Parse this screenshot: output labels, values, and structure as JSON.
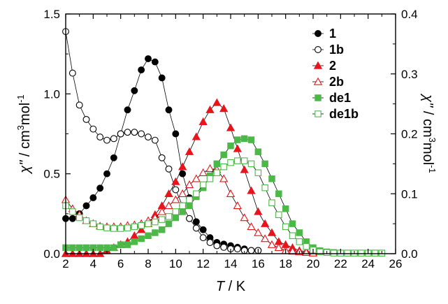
{
  "chart_data": {
    "type": "scatter",
    "xlabel": {
      "var": "T",
      "unit": " / K"
    },
    "ylabel_left": {
      "var": "χ\"",
      "unit": " / cm",
      "sup": "3",
      "tail": "mol",
      "sup2": "-1"
    },
    "ylabel_right": {
      "var": "χ\"",
      "unit": " / cm",
      "sup": "3",
      "tail": "mol",
      "sup2": "-1"
    },
    "xlim": [
      2,
      26
    ],
    "ylim_left": [
      0,
      1.5
    ],
    "ylim_right": [
      0,
      0.4
    ],
    "x_ticks": [
      "2",
      "4",
      "6",
      "8",
      "10",
      "12",
      "14",
      "16",
      "18",
      "20",
      "22",
      "24",
      "26"
    ],
    "y_ticks_left": [
      "0.0",
      "0.5",
      "1.0",
      "1.5"
    ],
    "y_ticks_right": [
      "0.0",
      "0.1",
      "0.2",
      "0.3",
      "0.4"
    ],
    "legend_position": "top-right",
    "series": [
      {
        "name": "1",
        "axis": "left",
        "marker": "circle",
        "filled": true,
        "color": "#000000",
        "x": [
          2,
          2.5,
          3,
          3.5,
          4,
          4.5,
          5,
          5.5,
          6,
          6.5,
          7,
          7.5,
          8,
          8.5,
          9,
          9.5,
          10,
          10.5,
          11,
          11.5,
          12,
          12.5,
          13,
          13.5,
          14,
          14.5,
          15,
          15.5,
          16
        ],
        "y": [
          0.22,
          0.22,
          0.25,
          0.3,
          0.35,
          0.41,
          0.5,
          0.6,
          0.75,
          0.9,
          1.02,
          1.15,
          1.22,
          1.2,
          1.1,
          0.9,
          0.75,
          0.5,
          0.35,
          0.2,
          0.15,
          0.1,
          0.07,
          0.06,
          0.05,
          0.04,
          0.03,
          0.02,
          0.02
        ]
      },
      {
        "name": "1b",
        "axis": "left",
        "marker": "circle",
        "filled": false,
        "color": "#000000",
        "x": [
          2,
          2.5,
          3,
          3.5,
          4,
          4.5,
          5,
          5.5,
          6,
          6.5,
          7,
          7.5,
          8,
          8.5,
          9,
          9.5,
          10,
          10.5,
          11,
          11.5,
          12,
          12.5,
          13,
          13.5,
          14,
          14.5,
          15,
          15.5,
          16
        ],
        "y": [
          1.39,
          1.13,
          0.93,
          0.84,
          0.78,
          0.73,
          0.71,
          0.72,
          0.75,
          0.76,
          0.76,
          0.75,
          0.73,
          0.71,
          0.6,
          0.53,
          0.4,
          0.3,
          0.22,
          0.16,
          0.1,
          0.07,
          0.05,
          0.04,
          0.03,
          0.03,
          0.02,
          0.02,
          0.02
        ]
      },
      {
        "name": "2",
        "axis": "right",
        "marker": "triangle",
        "filled": true,
        "color": "#e8141c",
        "x": [
          2,
          2.5,
          3,
          3.5,
          4,
          4.5,
          5,
          5.5,
          6,
          6.5,
          7,
          7.5,
          8,
          8.5,
          9,
          9.5,
          10,
          10.5,
          11,
          11.5,
          12,
          12.5,
          13,
          13.5,
          14,
          14.5,
          15,
          15.5,
          16,
          16.5,
          17,
          17.5,
          18,
          18.5,
          19,
          19.5,
          20
        ],
        "y": [
          0,
          0,
          0,
          0,
          0,
          0,
          0.005,
          0.01,
          0.015,
          0.02,
          0.03,
          0.04,
          0.05,
          0.065,
          0.08,
          0.1,
          0.12,
          0.145,
          0.17,
          0.195,
          0.22,
          0.24,
          0.252,
          0.242,
          0.21,
          0.175,
          0.14,
          0.105,
          0.07,
          0.05,
          0.035,
          0.02,
          0.015,
          0.01,
          0.005,
          0.004,
          0.003
        ]
      },
      {
        "name": "2b",
        "axis": "right",
        "marker": "triangle",
        "filled": false,
        "color": "#e8141c",
        "x": [
          2,
          2.5,
          3,
          3.5,
          4,
          4.5,
          5,
          5.5,
          6,
          6.5,
          7,
          7.5,
          8,
          8.5,
          9,
          9.5,
          10,
          10.5,
          11,
          11.5,
          12,
          12.5,
          13,
          13.5,
          14,
          14.5,
          15,
          15.5,
          16,
          16.5,
          17,
          17.5,
          18,
          18.5,
          19,
          19.5,
          20
        ],
        "y": [
          0.09,
          0.075,
          0.065,
          0.055,
          0.05,
          0.046,
          0.045,
          0.045,
          0.045,
          0.047,
          0.048,
          0.05,
          0.055,
          0.06,
          0.07,
          0.08,
          0.09,
          0.1,
          0.115,
          0.125,
          0.135,
          0.142,
          0.14,
          0.125,
          0.1,
          0.08,
          0.06,
          0.045,
          0.035,
          0.025,
          0.015,
          0.01,
          0.005,
          0.004,
          0.003,
          0.002,
          0.001
        ]
      },
      {
        "name": "de1",
        "axis": "right",
        "marker": "square",
        "filled": true,
        "color": "#4cb848",
        "x": [
          2,
          2.5,
          3,
          3.5,
          4,
          4.5,
          5,
          5.5,
          6,
          6.5,
          7,
          7.5,
          8,
          8.5,
          9,
          9.5,
          10,
          10.5,
          11,
          11.5,
          12,
          12.5,
          13,
          13.5,
          14,
          14.5,
          15,
          15.5,
          16,
          16.5,
          17,
          17.5,
          18,
          18.5,
          19,
          19.5,
          20,
          20.5,
          21,
          21.5,
          22,
          22.5,
          23,
          23.5,
          24,
          24.5,
          25
        ],
        "y": [
          0.01,
          0.01,
          0.01,
          0.01,
          0.01,
          0.01,
          0.01,
          0.01,
          0.015,
          0.015,
          0.02,
          0.025,
          0.03,
          0.035,
          0.04,
          0.05,
          0.06,
          0.07,
          0.08,
          0.095,
          0.11,
          0.13,
          0.15,
          0.165,
          0.18,
          0.19,
          0.192,
          0.19,
          0.17,
          0.15,
          0.125,
          0.1,
          0.075,
          0.05,
          0.035,
          0.02,
          0.01,
          0.005,
          0.003,
          0.002,
          0.001,
          0.001,
          0.001,
          0.001,
          0.001,
          0.001,
          0.001
        ]
      },
      {
        "name": "de1b",
        "axis": "right",
        "marker": "square",
        "filled": false,
        "color": "#4cb848",
        "x": [
          2,
          2.5,
          3,
          3.5,
          4,
          4.5,
          5,
          5.5,
          6,
          6.5,
          7,
          7.5,
          8,
          8.5,
          9,
          9.5,
          10,
          10.5,
          11,
          11.5,
          12,
          12.5,
          13,
          13.5,
          14,
          14.5,
          15,
          15.5,
          16,
          16.5,
          17,
          17.5,
          18,
          18.5,
          19,
          19.5,
          20,
          20.5,
          21,
          21.5,
          22,
          22.5,
          23,
          23.5,
          24,
          24.5,
          25
        ],
        "y": [
          0.08,
          0.07,
          0.06,
          0.055,
          0.05,
          0.045,
          0.043,
          0.042,
          0.042,
          0.043,
          0.045,
          0.047,
          0.05,
          0.053,
          0.057,
          0.062,
          0.07,
          0.08,
          0.09,
          0.1,
          0.115,
          0.125,
          0.135,
          0.145,
          0.152,
          0.155,
          0.155,
          0.15,
          0.135,
          0.11,
          0.085,
          0.065,
          0.045,
          0.03,
          0.02,
          0.012,
          0.006,
          0.003,
          0.002,
          0.001,
          0.001,
          0.001,
          0.001,
          0.001,
          0.001,
          0.001,
          0.001
        ]
      }
    ]
  }
}
